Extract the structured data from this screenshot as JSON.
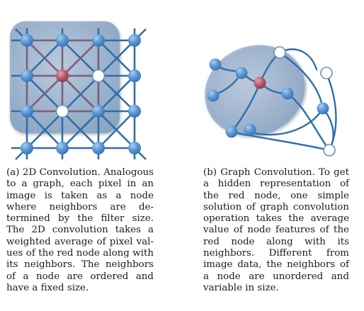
{
  "captions": {
    "a": "(a) 2D Convolution. Analo­gous to a graph, each pixel in an image is taken as a node where neighbors are de­termined by the filter size. The 2D convolution takes a weighted average of pixel val­ues of the red node along with its neighbors. The neighbors of a node are ordered and have a fixed size.",
    "b": "(b) Graph Convolution. To get a hidden representation of the red node, one simple solution of graph convolution opera­tion takes the average value of node features of the red node along with its neighbors. Different from image data, the neighbors of a node are un­ordered and variable in size."
  },
  "colors": {
    "node_blue": "#5b97d3",
    "node_red": "#b85c6c",
    "edge_blue": "#2f6fab",
    "edge_red": "#c0504d",
    "highlight_fill": "#8fa9c8",
    "hollow_fill": "#ffffff"
  },
  "icons": {
    "grid_graph": "2d-grid-graph-icon",
    "general_graph": "general-graph-icon"
  }
}
